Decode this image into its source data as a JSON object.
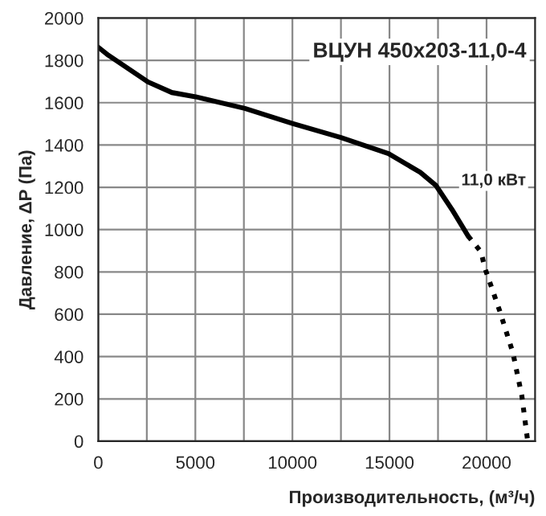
{
  "chart_data": {
    "type": "line",
    "title": "ВЦУН 450х203-11,0-4",
    "xlabel": "Производительность, (м³/ч)",
    "ylabel": "Давление, ΔР (Па)",
    "series": [
      {
        "color": "#000000",
        "line_style": "solid",
        "x": [
          0,
          523,
          2565,
          3790,
          5016,
          7549,
          10000,
          12500,
          14950,
          16585,
          17400,
          18220,
          19050
        ],
        "values": [
          1862,
          1824,
          1698,
          1648,
          1628,
          1573,
          1502,
          1435,
          1359,
          1271,
          1208,
          1095,
          970
        ]
      },
      {
        "color": "#000000",
        "line_style": "dotted",
        "x": [
          19050,
          19720,
          19910,
          20670,
          21360,
          21815,
          22120
        ],
        "values": [
          970,
          894,
          819,
          618,
          417,
          216,
          0
        ]
      }
    ],
    "annotations": [
      "11,0 кВт"
    ],
    "xlim": [
      0,
      22500
    ],
    "ylim": [
      0,
      2000
    ],
    "xticks": [
      0,
      {
        "value": 2500,
        "label": null
      },
      5000,
      {
        "value": 7500,
        "label": null
      },
      10000,
      {
        "value": 12500,
        "label": null
      },
      15000,
      {
        "value": 17500,
        "label": null
      },
      20000
    ],
    "yticks": [
      0,
      200,
      400,
      600,
      800,
      1000,
      1200,
      1400,
      1600,
      1800,
      2000
    ],
    "grid": true
  }
}
